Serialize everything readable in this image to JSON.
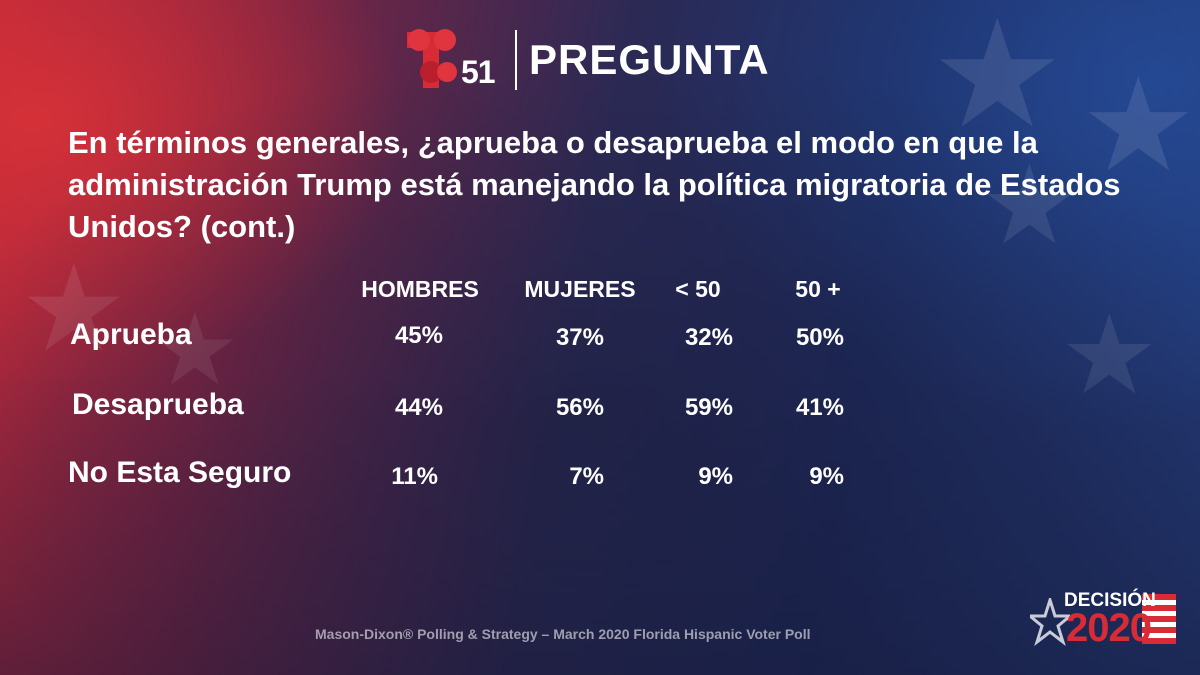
{
  "header": {
    "logo_number": "51",
    "title": "PREGUNTA"
  },
  "question": "En términos generales, ¿aprueba o desaprueba el modo en que la administración Trump está manejando la política migratoria de Estados Unidos?  (cont.)",
  "table": {
    "columns": [
      "HOMBRES",
      "MUJERES",
      "< 50",
      "50 +"
    ],
    "rows": [
      {
        "label": "Aprueba",
        "values": [
          "45%",
          "37%",
          "32%",
          "50%"
        ]
      },
      {
        "label": "Desaprueba",
        "values": [
          "44%",
          "56%",
          "59%",
          "41%"
        ]
      },
      {
        "label": "No Esta Seguro",
        "values": [
          "11%",
          "7%",
          "9%",
          "9%"
        ]
      }
    ]
  },
  "footer": "Mason-Dixon® Polling & Strategy – March 2020 Florida Hispanic Voter Poll",
  "badge": {
    "top": "DECISIÓN",
    "year": "2020"
  },
  "colors": {
    "brand_red": "#d92b36",
    "text": "#ffffff"
  },
  "icons": [
    "telemundo-logo-icon",
    "star-icon",
    "flag-stripes-icon"
  ]
}
